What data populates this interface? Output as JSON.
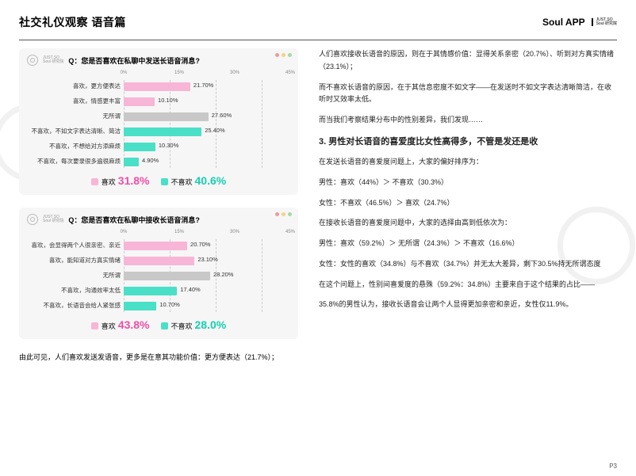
{
  "header": {
    "title": "社交礼仪观察 语音篇",
    "brand_main": "Soul APP",
    "brand_sub1": "JUST SO",
    "brand_sub2": "Soul 研究院"
  },
  "colors": {
    "pink": "#f7b6d6",
    "teal": "#49e0c7",
    "grey": "#c8c8c8",
    "pink_strong": "#ef4fa6",
    "teal_strong": "#17cfb0"
  },
  "axis": {
    "ticks": [
      "0%",
      "15%",
      "30%",
      "45%"
    ],
    "positions_pct": [
      0,
      33.33,
      66.67,
      100
    ],
    "max": 45
  },
  "chart1": {
    "sub1": "JUST SO",
    "sub2": "Soul 研究院",
    "question": "Q：您是否喜欢在私聊中发送长语音消息?",
    "rows": [
      {
        "label": "喜欢，更方便表达",
        "value": 21.7,
        "value_label": "21.70%",
        "color_key": "pink"
      },
      {
        "label": "喜欢，情感更丰富",
        "value": 10.1,
        "value_label": "10.10%",
        "color_key": "pink"
      },
      {
        "label": "无所谓",
        "value": 27.6,
        "value_label": "27.60%",
        "color_key": "grey"
      },
      {
        "label": "不喜欢，不如文字表达清晰、简洁",
        "value": 25.4,
        "value_label": "25.40%",
        "color_key": "teal"
      },
      {
        "label": "不喜欢，不想给对方添麻烦",
        "value": 10.3,
        "value_label": "10.30%",
        "color_key": "teal"
      },
      {
        "label": "不喜欢，每次要录很多遍很麻烦",
        "value": 4.9,
        "value_label": "4.90%",
        "color_key": "teal"
      }
    ],
    "legend": {
      "like_label": "喜欢",
      "like_pct": "31.8%",
      "dislike_label": "不喜欢",
      "dislike_pct": "40.6%"
    }
  },
  "chart2": {
    "sub1": "JUST SO",
    "sub2": "Soul 研究院",
    "question": "Q：您是否喜欢在私聊中接收长语音消息?",
    "rows": [
      {
        "label": "喜欢，会显得两个人很亲密、亲近",
        "value": 20.7,
        "value_label": "20.70%",
        "color_key": "pink"
      },
      {
        "label": "喜欢，能知道对方真实情绪",
        "value": 23.1,
        "value_label": "23.10%",
        "color_key": "pink"
      },
      {
        "label": "无所谓",
        "value": 28.2,
        "value_label": "28.20%",
        "color_key": "grey"
      },
      {
        "label": "不喜欢，沟通效率太低",
        "value": 17.4,
        "value_label": "17.40%",
        "color_key": "teal"
      },
      {
        "label": "不喜欢，长语音会给人紧张感",
        "value": 10.7,
        "value_label": "10.70%",
        "color_key": "teal"
      }
    ],
    "legend": {
      "like_label": "喜欢",
      "like_pct": "43.8%",
      "dislike_label": "不喜欢",
      "dislike_pct": "28.0%"
    }
  },
  "left_footnote": "由此可见，人们喜欢发送发语音，更多是在意其功能价值：更方便表达（21.7%）；",
  "right": {
    "p1": "人们喜欢接收长语音的原因，则在于其情感价值：显得关系亲密（20.7%）、听到对方真实情绪（23.1%）；",
    "p2": "而不喜欢长语音的原因，在于其信息密度不如文字——在发送时不如文字表达清晰简洁，在收听时又效率太低。",
    "p3": "而当我们考察结果分布中的性别差异，我们发现……",
    "h3": "3. 男性对长语音的喜爱度比女性高得多，不管是发还是收",
    "p4": "在发送长语音的喜爱度问题上，大家的偏好排序为：",
    "p5": "男性：喜欢（44%）＞ 不喜欢（30.3%）",
    "p6": "女性：不喜欢（46.5%）＞ 喜欢（24.7%）",
    "p7": "在接收长语音的喜爱度问题中，大家的选择由高到低依次为：",
    "p8": "男性：喜欢（59.2%）＞ 无所谓（24.3%）＞ 不喜欢（16.6%）",
    "p9": "女性：女性的喜欢（34.8%）与不喜欢（34.7%）并无太大差异，剩下30.5%持无所谓态度",
    "p10": "在这个问题上，性别间喜爱度的悬殊（59.2%：34.8%）主要来自于这个结果的占比——",
    "p11": "35.8%的男性认为，接收长语音会让两个人显得更加亲密和亲近，女性仅11.9%。"
  },
  "pagenum": "P3"
}
